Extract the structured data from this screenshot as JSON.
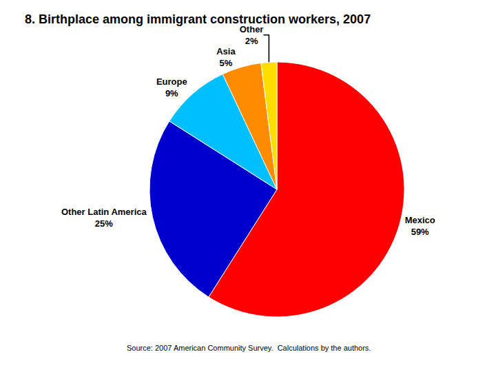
{
  "chart_data": {
    "type": "pie",
    "title": "8. Birthplace among immigrant construction workers, 2007",
    "categories": [
      "Mexico",
      "Other Latin America",
      "Europe",
      "Asia",
      "Other"
    ],
    "values": [
      59,
      25,
      9,
      5,
      2
    ],
    "value_labels": [
      "59%",
      "25%",
      "9%",
      "5%",
      "2%"
    ],
    "data_labels": true,
    "colors": [
      "#ff0000",
      "#0000cc",
      "#00bfff",
      "#ff8c00",
      "#ffdd00"
    ],
    "annotations": [
      "Source: 2007 American Community Survey.  Calculations by the authors."
    ]
  }
}
